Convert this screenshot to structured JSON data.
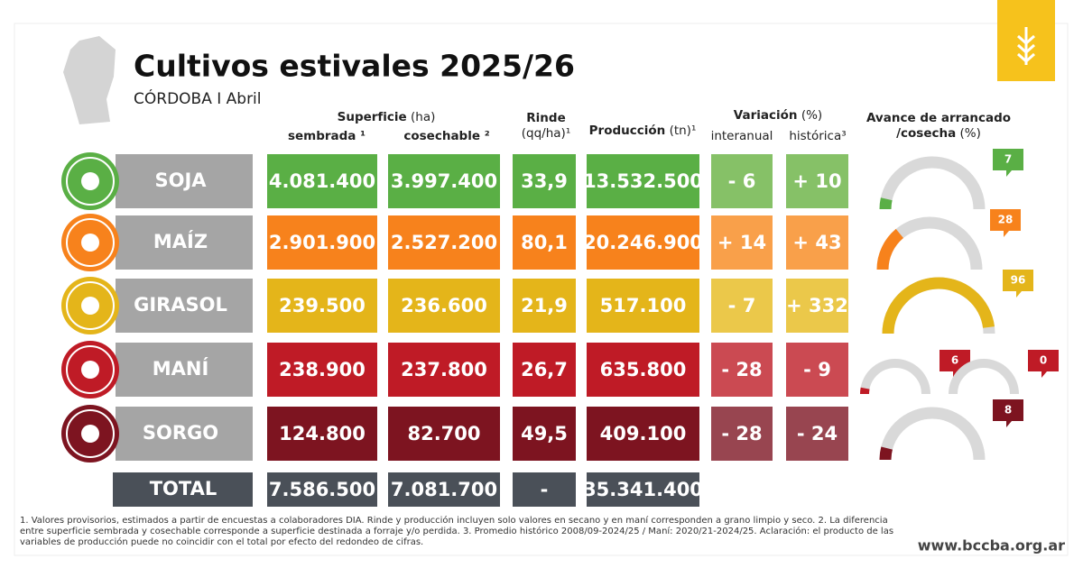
{
  "header": {
    "title": "Cultivos estivales 2025/26",
    "subtitle": "CÓRDOBA I Abril"
  },
  "columns": {
    "superficie": "Superficie",
    "superficie_unit": "(ha)",
    "sembrada": "sembrada ¹",
    "cosechable": "cosechable ²",
    "rinde": "Rinde",
    "rinde_unit": "(qq/ha)¹",
    "produccion": "Producción",
    "produccion_unit": "(tn)¹",
    "variacion": "Variación",
    "variacion_unit": "(%)",
    "interanual": "interanual",
    "historica": "histórica³",
    "avance": "Avance de arrancado",
    "avance_2": "/cosecha",
    "avance_unit": "(%)"
  },
  "rows": [
    {
      "name": "SOJA",
      "color": "#5aaf45",
      "light": "#86c167",
      "sembrada": "4.081.400",
      "cosechable": "3.997.400",
      "rinde": "33,9",
      "produccion": "13.532.500",
      "interanual": "- 6",
      "historica": "+ 10",
      "avance": [
        7
      ]
    },
    {
      "name": "MAÍZ",
      "color": "#f7821c",
      "light": "#f9a04a",
      "sembrada": "2.901.900",
      "cosechable": "2.527.200",
      "rinde": "80,1",
      "produccion": "20.246.900",
      "interanual": "+ 14",
      "historica": "+ 43",
      "avance": [
        28
      ]
    },
    {
      "name": "GIRASOL",
      "color": "#e4b51a",
      "light": "#ebc84a",
      "sembrada": "239.500",
      "cosechable": "236.600",
      "rinde": "21,9",
      "produccion": "517.100",
      "interanual": "- 7",
      "historica": "+ 332",
      "avance": [
        96
      ]
    },
    {
      "name": "MANÍ",
      "color": "#bf1b26",
      "light": "#cb4a52",
      "sembrada": "238.900",
      "cosechable": "237.800",
      "rinde": "26,7",
      "produccion": "635.800",
      "interanual": "- 28",
      "historica": "- 9",
      "avance": [
        6,
        0
      ]
    },
    {
      "name": "SORGO",
      "color": "#7d1420",
      "light": "#984550",
      "sembrada": "124.800",
      "cosechable": "82.700",
      "rinde": "49,5",
      "produccion": "409.100",
      "interanual": "- 28",
      "historica": "- 24",
      "avance": [
        8
      ]
    }
  ],
  "total": {
    "name": "TOTAL",
    "sembrada": "7.586.500",
    "cosechable": "7.081.700",
    "rinde": "-",
    "produccion": "35.341.400"
  },
  "footnote": "1. Valores provisorios, estimados a partir de encuestas a colaboradores DIA. Rinde y producción incluyen solo valores en secano y en maní corresponden a grano limpio y seco. 2. La diferencia entre superficie sembrada y cosechable corresponde a superficie destinada a forraje y/o perdida. 3. Promedio histórico 2008/09-2024/25 / Maní: 2020/21-2024/25. Aclaración: el producto de las variables de producción puede no coincidir con el total por efecto del redondeo de cifras.",
  "url": "www.bccba.org.ar"
}
